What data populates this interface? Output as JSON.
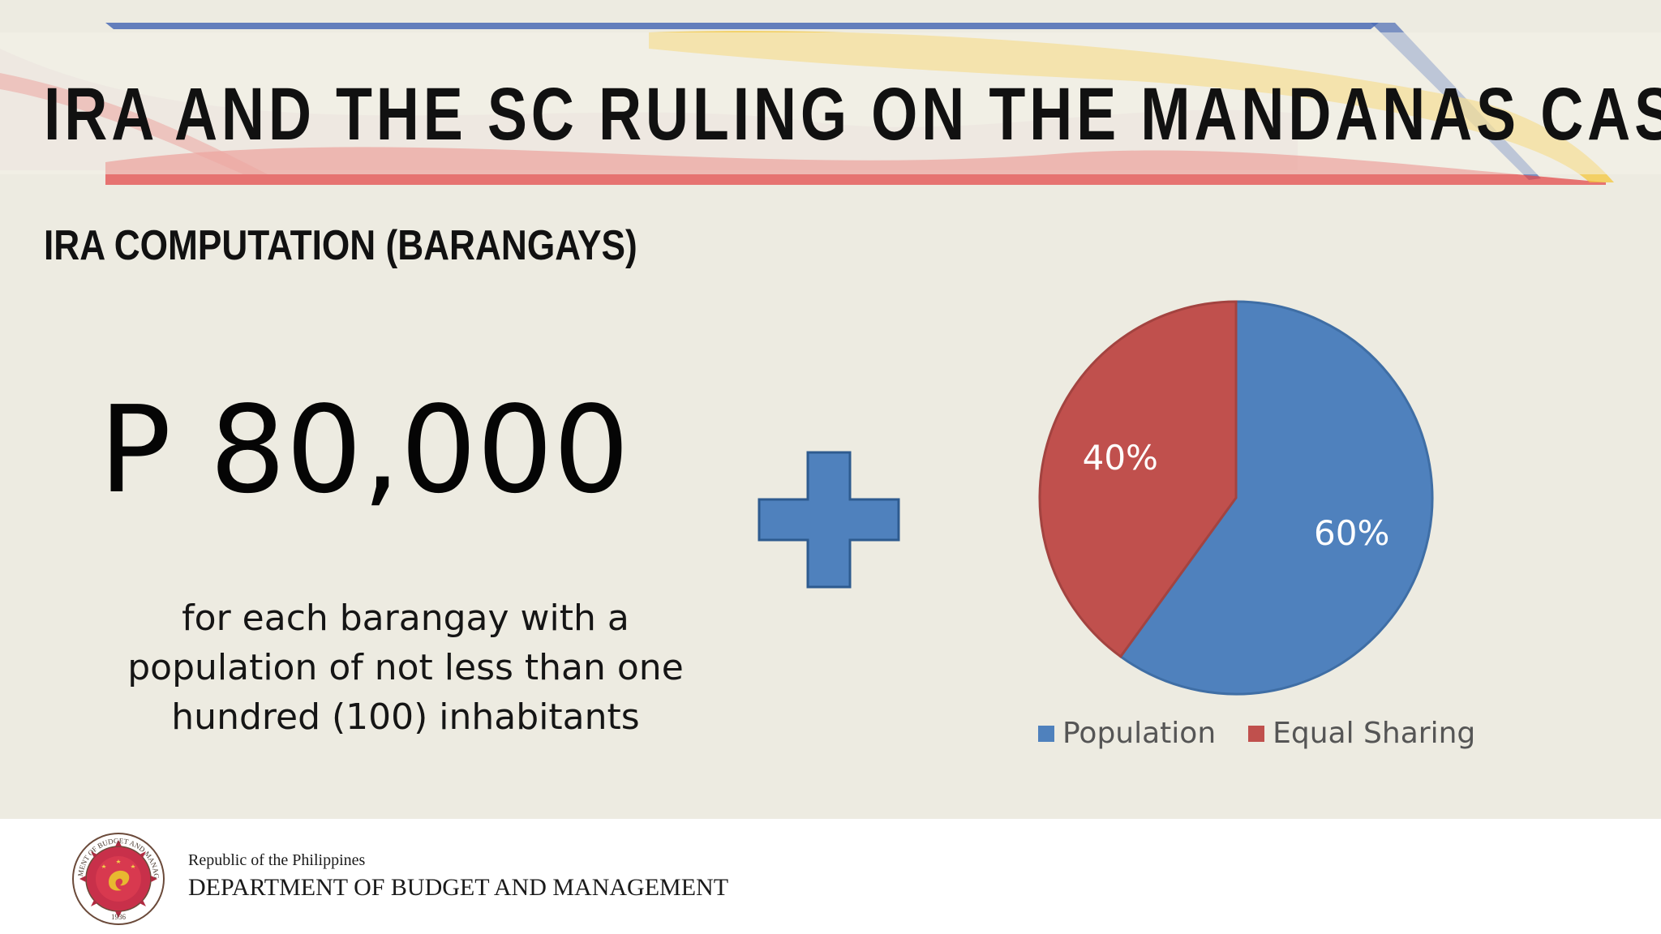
{
  "slide": {
    "title": "IRA AND THE SC RULING ON THE MANDANAS CASE",
    "subtitle": "IRA COMPUTATION (BARANGAYS)",
    "amount": "P 80,000",
    "description": "for each barangay with a population of not less than one hundred (100) inhabitants"
  },
  "chart_data": {
    "type": "pie",
    "slices": [
      {
        "name": "Population",
        "value": 60,
        "label": "60%",
        "color": "#4f81bd"
      },
      {
        "name": "Equal Sharing",
        "value": 40,
        "label": "40%",
        "color": "#c0504d"
      }
    ],
    "legend_position": "bottom"
  },
  "footer": {
    "line1": "Republic of the Philippines",
    "line2": "DEPARTMENT OF BUDGET AND MANAGEMENT",
    "seal_text_top": "DEPARTMENT OF BUDGET AND MANAGEMENT",
    "seal_year": "1936"
  },
  "icons": {
    "plus": "plus-icon",
    "seal": "dbm-seal"
  },
  "colors": {
    "background": "#edebe1",
    "plus_fill": "#4f81bd",
    "plus_stroke": "#2e5b8f",
    "banner_blue": "#4a6bb5",
    "banner_red": "#d94b4b",
    "banner_yellow": "#f5c431"
  }
}
